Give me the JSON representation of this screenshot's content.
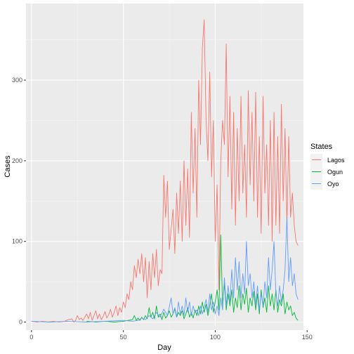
{
  "chart_data": {
    "type": "line",
    "xlabel": "Day",
    "ylabel": "Cases",
    "xlim": [
      -3,
      148
    ],
    "ylim": [
      -10,
      395
    ],
    "xticks": [
      0,
      50,
      100,
      150
    ],
    "yticks": [
      0,
      100,
      200,
      300
    ],
    "legend": {
      "title": "States",
      "position": "right"
    },
    "grid": true,
    "series": [
      {
        "name": "Lagos",
        "color": "#F8766D",
        "points": [
          [
            0,
            1
          ],
          [
            3,
            0
          ],
          [
            6,
            1
          ],
          [
            9,
            0
          ],
          [
            12,
            1
          ],
          [
            15,
            0
          ],
          [
            18,
            1
          ],
          [
            20,
            3
          ],
          [
            22,
            4
          ],
          [
            23,
            0
          ],
          [
            24,
            2
          ],
          [
            25,
            8
          ],
          [
            26,
            3
          ],
          [
            27,
            5
          ],
          [
            28,
            2
          ],
          [
            30,
            10
          ],
          [
            31,
            4
          ],
          [
            32,
            12
          ],
          [
            33,
            2
          ],
          [
            34,
            8
          ],
          [
            35,
            14
          ],
          [
            36,
            4
          ],
          [
            37,
            10
          ],
          [
            38,
            3
          ],
          [
            39,
            7
          ],
          [
            40,
            13
          ],
          [
            41,
            5
          ],
          [
            42,
            9
          ],
          [
            43,
            16
          ],
          [
            44,
            6
          ],
          [
            45,
            12
          ],
          [
            46,
            20
          ],
          [
            47,
            8
          ],
          [
            48,
            18
          ],
          [
            49,
            12
          ],
          [
            50,
            25
          ],
          [
            51,
            18
          ],
          [
            52,
            35
          ],
          [
            53,
            28
          ],
          [
            54,
            50
          ],
          [
            55,
            40
          ],
          [
            56,
            70
          ],
          [
            57,
            55
          ],
          [
            58,
            78
          ],
          [
            59,
            60
          ],
          [
            60,
            85
          ],
          [
            61,
            50
          ],
          [
            62,
            80
          ],
          [
            63,
            30
          ],
          [
            64,
            75
          ],
          [
            65,
            40
          ],
          [
            66,
            85
          ],
          [
            67,
            55
          ],
          [
            68,
            90
          ],
          [
            69,
            45
          ],
          [
            70,
            65
          ],
          [
            71,
            60
          ],
          [
            72,
            182
          ],
          [
            73,
            130
          ],
          [
            74,
            175
          ],
          [
            75,
            90
          ],
          [
            76,
            115
          ],
          [
            77,
            140
          ],
          [
            78,
            85
          ],
          [
            79,
            160
          ],
          [
            80,
            110
          ],
          [
            81,
            175
          ],
          [
            82,
            100
          ],
          [
            83,
            200
          ],
          [
            84,
            120
          ],
          [
            85,
            190
          ],
          [
            86,
            105
          ],
          [
            87,
            260
          ],
          [
            88,
            160
          ],
          [
            89,
            240
          ],
          [
            90,
            130
          ],
          [
            91,
            300
          ],
          [
            92,
            220
          ],
          [
            93,
            340
          ],
          [
            94,
            375
          ],
          [
            95,
            250
          ],
          [
            96,
            200
          ],
          [
            97,
            310
          ],
          [
            98,
            180
          ],
          [
            99,
            250
          ],
          [
            100,
            100
          ],
          [
            101,
            170
          ],
          [
            102,
            40
          ],
          [
            103,
            200
          ],
          [
            104,
            250
          ],
          [
            105,
            220
          ],
          [
            106,
            345
          ],
          [
            107,
            180
          ],
          [
            108,
            280
          ],
          [
            109,
            140
          ],
          [
            110,
            260
          ],
          [
            111,
            120
          ],
          [
            112,
            240
          ],
          [
            113,
            150
          ],
          [
            114,
            280
          ],
          [
            115,
            160
          ],
          [
            116,
            220
          ],
          [
            117,
            130
          ],
          [
            118,
            287
          ],
          [
            119,
            170
          ],
          [
            120,
            260
          ],
          [
            121,
            150
          ],
          [
            122,
            285
          ],
          [
            123,
            130
          ],
          [
            124,
            230
          ],
          [
            125,
            110
          ],
          [
            126,
            280
          ],
          [
            127,
            160
          ],
          [
            128,
            220
          ],
          [
            129,
            120
          ],
          [
            130,
            250
          ],
          [
            131,
            100
          ],
          [
            132,
            260
          ],
          [
            133,
            120
          ],
          [
            134,
            230
          ],
          [
            135,
            110
          ],
          [
            136,
            270
          ],
          [
            137,
            150
          ],
          [
            138,
            240
          ],
          [
            139,
            120
          ],
          [
            140,
            230
          ],
          [
            141,
            130
          ],
          [
            142,
            160
          ],
          [
            143,
            120
          ],
          [
            144,
            100
          ],
          [
            145,
            95
          ]
        ]
      },
      {
        "name": "Ogun",
        "color": "#00BA38",
        "points": [
          [
            30,
            1
          ],
          [
            35,
            0
          ],
          [
            40,
            1
          ],
          [
            45,
            0
          ],
          [
            50,
            1
          ],
          [
            55,
            3
          ],
          [
            56,
            8
          ],
          [
            57,
            2
          ],
          [
            58,
            5
          ],
          [
            59,
            2
          ],
          [
            60,
            6
          ],
          [
            61,
            3
          ],
          [
            62,
            8
          ],
          [
            63,
            4
          ],
          [
            64,
            18
          ],
          [
            65,
            6
          ],
          [
            66,
            12
          ],
          [
            67,
            4
          ],
          [
            68,
            20
          ],
          [
            69,
            6
          ],
          [
            70,
            10
          ],
          [
            71,
            3
          ],
          [
            72,
            12
          ],
          [
            73,
            5
          ],
          [
            74,
            8
          ],
          [
            75,
            14
          ],
          [
            76,
            6
          ],
          [
            77,
            10
          ],
          [
            78,
            16
          ],
          [
            79,
            6
          ],
          [
            80,
            12
          ],
          [
            81,
            8
          ],
          [
            82,
            14
          ],
          [
            83,
            4
          ],
          [
            84,
            10
          ],
          [
            85,
            18
          ],
          [
            86,
            6
          ],
          [
            87,
            12
          ],
          [
            88,
            5
          ],
          [
            89,
            15
          ],
          [
            90,
            8
          ],
          [
            91,
            20
          ],
          [
            92,
            10
          ],
          [
            93,
            25
          ],
          [
            94,
            12
          ],
          [
            95,
            22
          ],
          [
            96,
            8
          ],
          [
            97,
            20
          ],
          [
            98,
            35
          ],
          [
            99,
            12
          ],
          [
            100,
            25
          ],
          [
            101,
            40
          ],
          [
            102,
            15
          ],
          [
            103,
            108
          ],
          [
            104,
            20
          ],
          [
            105,
            48
          ],
          [
            106,
            15
          ],
          [
            107,
            35
          ],
          [
            108,
            20
          ],
          [
            109,
            40
          ],
          [
            110,
            12
          ],
          [
            111,
            30
          ],
          [
            112,
            18
          ],
          [
            113,
            45
          ],
          [
            114,
            15
          ],
          [
            115,
            35
          ],
          [
            116,
            22
          ],
          [
            117,
            42
          ],
          [
            118,
            12
          ],
          [
            119,
            30
          ],
          [
            120,
            20
          ],
          [
            121,
            38
          ],
          [
            122,
            15
          ],
          [
            123,
            35
          ],
          [
            124,
            10
          ],
          [
            125,
            40
          ],
          [
            126,
            18
          ],
          [
            127,
            30
          ],
          [
            128,
            12
          ],
          [
            129,
            45
          ],
          [
            130,
            20
          ],
          [
            131,
            35
          ],
          [
            132,
            15
          ],
          [
            133,
            40
          ],
          [
            134,
            12
          ],
          [
            135,
            28
          ],
          [
            136,
            20
          ],
          [
            137,
            35
          ],
          [
            138,
            10
          ],
          [
            139,
            25
          ],
          [
            140,
            15
          ],
          [
            141,
            20
          ],
          [
            142,
            8
          ],
          [
            143,
            12
          ],
          [
            144,
            5
          ],
          [
            145,
            2
          ]
        ]
      },
      {
        "name": "Oyo",
        "color": "#619CFF",
        "points": [
          [
            0,
            1
          ],
          [
            10,
            0
          ],
          [
            20,
            1
          ],
          [
            30,
            0
          ],
          [
            40,
            1
          ],
          [
            50,
            2
          ],
          [
            55,
            1
          ],
          [
            58,
            2
          ],
          [
            60,
            5
          ],
          [
            62,
            3
          ],
          [
            64,
            8
          ],
          [
            66,
            4
          ],
          [
            68,
            12
          ],
          [
            70,
            6
          ],
          [
            72,
            16
          ],
          [
            74,
            8
          ],
          [
            76,
            30
          ],
          [
            77,
            10
          ],
          [
            78,
            18
          ],
          [
            79,
            6
          ],
          [
            80,
            25
          ],
          [
            81,
            10
          ],
          [
            82,
            20
          ],
          [
            83,
            8
          ],
          [
            84,
            30
          ],
          [
            85,
            12
          ],
          [
            86,
            25
          ],
          [
            87,
            8
          ],
          [
            88,
            20
          ],
          [
            89,
            12
          ],
          [
            90,
            15
          ],
          [
            91,
            8
          ],
          [
            92,
            20
          ],
          [
            93,
            10
          ],
          [
            94,
            18
          ],
          [
            95,
            28
          ],
          [
            96,
            12
          ],
          [
            97,
            35
          ],
          [
            98,
            15
          ],
          [
            99,
            25
          ],
          [
            100,
            10
          ],
          [
            101,
            20
          ],
          [
            102,
            8
          ],
          [
            103,
            30
          ],
          [
            104,
            15
          ],
          [
            105,
            55
          ],
          [
            106,
            20
          ],
          [
            107,
            45
          ],
          [
            108,
            25
          ],
          [
            109,
            65
          ],
          [
            110,
            30
          ],
          [
            111,
            80
          ],
          [
            112,
            40
          ],
          [
            113,
            75
          ],
          [
            114,
            30
          ],
          [
            115,
            60
          ],
          [
            116,
            35
          ],
          [
            117,
            100
          ],
          [
            118,
            45
          ],
          [
            119,
            60
          ],
          [
            120,
            30
          ],
          [
            121,
            50
          ],
          [
            122,
            20
          ],
          [
            123,
            45
          ],
          [
            124,
            15
          ],
          [
            125,
            35
          ],
          [
            126,
            20
          ],
          [
            127,
            50
          ],
          [
            128,
            30
          ],
          [
            129,
            80
          ],
          [
            130,
            40
          ],
          [
            131,
            65
          ],
          [
            132,
            100
          ],
          [
            133,
            35
          ],
          [
            134,
            20
          ],
          [
            135,
            45
          ],
          [
            136,
            25
          ],
          [
            137,
            40
          ],
          [
            138,
            65
          ],
          [
            139,
            130
          ],
          [
            140,
            50
          ],
          [
            141,
            80
          ],
          [
            142,
            45
          ],
          [
            143,
            60
          ],
          [
            144,
            35
          ],
          [
            145,
            28
          ]
        ]
      }
    ]
  }
}
